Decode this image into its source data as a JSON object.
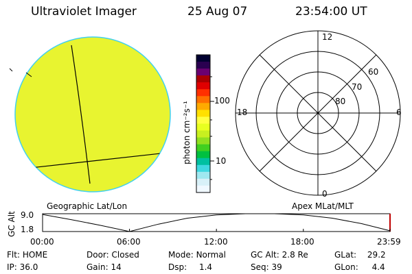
{
  "header": {
    "instrument": "Ultraviolet Imager",
    "date": "25 Aug 07",
    "time": "23:54:00 UT"
  },
  "colorbar": {
    "unit_label": "photon cm⁻²s⁻¹",
    "ticks": [
      "100",
      "10"
    ],
    "colors": [
      "#000030",
      "#2a0050",
      "#6a0070",
      "#aa0000",
      "#e00000",
      "#ff3000",
      "#ff7000",
      "#ffaa00",
      "#ffe000",
      "#ffff40",
      "#e8ff20",
      "#c8f020",
      "#90e020",
      "#40d020",
      "#00c040",
      "#00c0a0",
      "#40d8e0",
      "#a0e8f0",
      "#d8f0f8",
      "#f0f8ff"
    ]
  },
  "left_panel": {
    "caption": "Geographic Lat/Lon",
    "fill_color": "#e8f430",
    "edge_color": "#40d0f0"
  },
  "right_panel": {
    "caption": "Apex MLat/MLT",
    "mlt_labels": {
      "top": "12",
      "left": "18",
      "right": "6",
      "bottom": "0"
    },
    "lat_labels": [
      "60",
      "70",
      "80"
    ]
  },
  "altitude_strip": {
    "axis_label": "GC Alt",
    "y_ticks": [
      "9.0",
      "1.8"
    ],
    "x_ticks": [
      "00:00",
      "06:00",
      "12:00",
      "18:00",
      "23:59"
    ]
  },
  "info": {
    "flt_label": "Flt:",
    "flt_value": "HOME",
    "door_label": "Door:",
    "door_value": "Closed",
    "mode_label": "Mode:",
    "mode_value": "Normal",
    "gcalt_label": "GC Alt:",
    "gcalt_value": "2.8 Re",
    "glat_label": "GLat:",
    "glat_value": "29.2",
    "ip_label": "IP:",
    "ip_value": "36.0",
    "gain_label": "Gain:",
    "gain_value": "14",
    "dsp_label": "Dsp:",
    "dsp_value": "1.4",
    "seq_label": "Seq:",
    "seq_value": "39",
    "glon_label": "GLon:",
    "glon_value": "4.4"
  },
  "chart_data": {
    "type": "line",
    "title": "",
    "ylabel": "GC Alt",
    "xlabel": "",
    "x_range": [
      "00:00",
      "23:59"
    ],
    "ylim": [
      1.8,
      9.0
    ],
    "series": [
      {
        "x": [
          "00:00",
          "02:00",
          "04:00",
          "06:00",
          "08:00",
          "10:00",
          "12:00",
          "14:00",
          "16:00",
          "18:00",
          "20:00",
          "22:00",
          "23:59"
        ],
        "values": [
          8.7,
          6.6,
          4.3,
          1.8,
          4.8,
          7.2,
          8.5,
          9.0,
          9.0,
          8.5,
          7.2,
          5.0,
          2.1
        ]
      }
    ]
  }
}
